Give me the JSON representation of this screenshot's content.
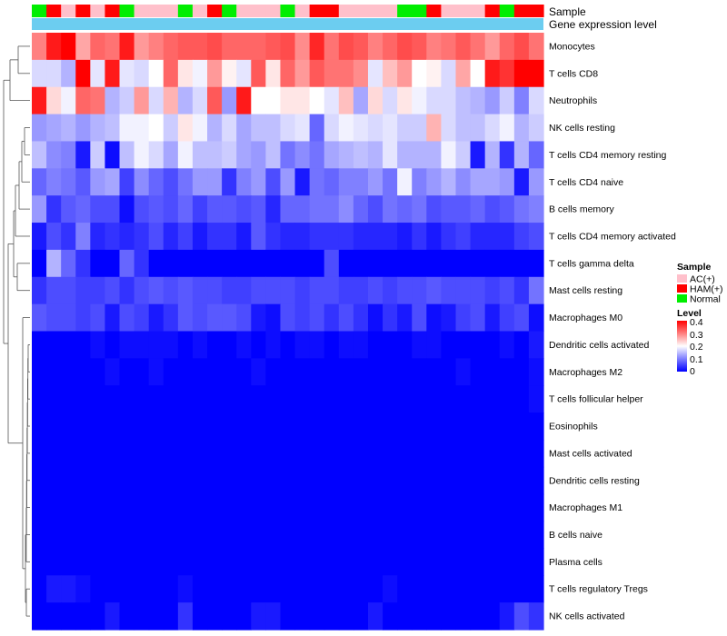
{
  "chart_data": {
    "type": "heatmap",
    "title": "",
    "annotation_labels": [
      "Sample",
      "Gene expression level"
    ],
    "samples": [
      "Normal",
      "HAM(+)",
      "AC(+)",
      "HAM(+)",
      "AC(+)",
      "HAM(+)",
      "Normal",
      "AC(+)",
      "AC(+)",
      "AC(+)",
      "Normal",
      "AC(+)",
      "HAM(+)",
      "Normal",
      "AC(+)",
      "AC(+)",
      "AC(+)",
      "Normal",
      "AC(+)",
      "HAM(+)",
      "HAM(+)",
      "AC(+)",
      "AC(+)",
      "AC(+)",
      "AC(+)",
      "Normal",
      "Normal",
      "HAM(+)",
      "AC(+)",
      "AC(+)",
      "AC(+)",
      "HAM(+)",
      "Normal",
      "HAM(+)",
      "HAM(+)"
    ],
    "sample_colors": {
      "AC(+)": "#ffc0cb",
      "HAM(+)": "#ff0000",
      "Normal": "#00ee00"
    },
    "gene_expression_color": "#6ccdf0",
    "sample_legend": {
      "title": "Sample",
      "entries": [
        "AC(+)",
        "HAM(+)",
        "Normal"
      ]
    },
    "color_scale": {
      "title": "Level",
      "low": "#0000ff",
      "mid": "#ffffff",
      "high": "#ff0000",
      "min": 0,
      "mid_value": 0.2,
      "max": 0.4,
      "ticks": [
        "0.4",
        "0.3",
        "0.2",
        "0.1",
        "0"
      ]
    },
    "rows": [
      {
        "name": "Monocytes",
        "values": [
          0.3,
          0.38,
          0.4,
          0.27,
          0.32,
          0.31,
          0.38,
          0.28,
          0.3,
          0.32,
          0.33,
          0.33,
          0.34,
          0.32,
          0.32,
          0.32,
          0.33,
          0.34,
          0.29,
          0.37,
          0.31,
          0.34,
          0.33,
          0.3,
          0.32,
          0.34,
          0.33,
          0.3,
          0.31,
          0.33,
          0.31,
          0.28,
          0.32,
          0.34,
          0.31
        ]
      },
      {
        "name": "T cells CD8",
        "values": [
          0.17,
          0.17,
          0.14,
          0.4,
          0.18,
          0.38,
          0.18,
          0.17,
          0.2,
          0.32,
          0.22,
          0.19,
          0.28,
          0.21,
          0.18,
          0.33,
          0.22,
          0.32,
          0.28,
          0.33,
          0.31,
          0.31,
          0.29,
          0.18,
          0.25,
          0.28,
          0.2,
          0.21,
          0.17,
          0.27,
          0.2,
          0.38,
          0.36,
          0.4,
          0.4
        ]
      },
      {
        "name": "Neutrophils",
        "values": [
          0.38,
          0.23,
          0.19,
          0.32,
          0.31,
          0.14,
          0.16,
          0.28,
          0.17,
          0.26,
          0.14,
          0.17,
          0.33,
          0.12,
          0.38,
          0.2,
          0.2,
          0.22,
          0.22,
          0.2,
          0.18,
          0.25,
          0.13,
          0.23,
          0.17,
          0.22,
          0.19,
          0.17,
          0.17,
          0.15,
          0.14,
          0.12,
          0.16,
          0.1,
          0.17
        ]
      },
      {
        "name": "NK cells resting",
        "values": [
          0.12,
          0.13,
          0.14,
          0.12,
          0.14,
          0.15,
          0.19,
          0.19,
          0.2,
          0.16,
          0.22,
          0.19,
          0.14,
          0.17,
          0.13,
          0.15,
          0.15,
          0.17,
          0.18,
          0.08,
          0.17,
          0.19,
          0.18,
          0.17,
          0.18,
          0.16,
          0.16,
          0.26,
          0.17,
          0.15,
          0.15,
          0.17,
          0.19,
          0.14,
          0.16
        ]
      },
      {
        "name": "T cells CD4 memory resting",
        "values": [
          0.15,
          0.11,
          0.1,
          0.02,
          0.16,
          0.01,
          0.15,
          0.19,
          0.17,
          0.13,
          0.19,
          0.15,
          0.15,
          0.16,
          0.13,
          0.12,
          0.15,
          0.09,
          0.11,
          0.09,
          0.13,
          0.14,
          0.15,
          0.14,
          0.18,
          0.14,
          0.14,
          0.14,
          0.19,
          0.16,
          0.02,
          0.14,
          0.04,
          0.14,
          0.08
        ]
      },
      {
        "name": "T cells CD4 naive",
        "values": [
          0.08,
          0.1,
          0.09,
          0.07,
          0.12,
          0.13,
          0.05,
          0.11,
          0.08,
          0.06,
          0.09,
          0.12,
          0.12,
          0.04,
          0.1,
          0.12,
          0.06,
          0.12,
          0.02,
          0.09,
          0.08,
          0.1,
          0.1,
          0.12,
          0.09,
          0.19,
          0.1,
          0.12,
          0.14,
          0.11,
          0.13,
          0.13,
          0.12,
          0.02,
          0.12
        ]
      },
      {
        "name": "B cells memory",
        "values": [
          0.12,
          0.04,
          0.07,
          0.08,
          0.06,
          0.06,
          0.01,
          0.06,
          0.07,
          0.06,
          0.08,
          0.05,
          0.07,
          0.07,
          0.06,
          0.07,
          0.03,
          0.08,
          0.08,
          0.09,
          0.09,
          0.11,
          0.08,
          0.06,
          0.09,
          0.08,
          0.09,
          0.06,
          0.07,
          0.07,
          0.08,
          0.06,
          0.07,
          0.09,
          0.1
        ]
      },
      {
        "name": "T cells CD4 memory activated",
        "values": [
          0.02,
          0.06,
          0.04,
          0.1,
          0.03,
          0.04,
          0.03,
          0.04,
          0.06,
          0.03,
          0.05,
          0.02,
          0.04,
          0.04,
          0.02,
          0.07,
          0.04,
          0.03,
          0.03,
          0.04,
          0.04,
          0.04,
          0.03,
          0.03,
          0.03,
          0.02,
          0.04,
          0.02,
          0.04,
          0.05,
          0.03,
          0.03,
          0.03,
          0.05,
          0.06
        ]
      },
      {
        "name": "T cells gamma delta",
        "values": [
          0.0,
          0.14,
          0.08,
          0.04,
          0.0,
          0.0,
          0.08,
          0.04,
          0.0,
          0.0,
          0.0,
          0.0,
          0.0,
          0.0,
          0.0,
          0.0,
          0.0,
          0.0,
          0.0,
          0.0,
          0.06,
          0.0,
          0.0,
          0.0,
          0.0,
          0.0,
          0.0,
          0.0,
          0.0,
          0.0,
          0.0,
          0.0,
          0.0,
          0.0,
          0.0
        ]
      },
      {
        "name": "Mast cells resting",
        "values": [
          0.04,
          0.06,
          0.06,
          0.05,
          0.05,
          0.06,
          0.04,
          0.06,
          0.07,
          0.06,
          0.07,
          0.06,
          0.06,
          0.05,
          0.05,
          0.06,
          0.06,
          0.06,
          0.05,
          0.06,
          0.06,
          0.05,
          0.05,
          0.06,
          0.05,
          0.06,
          0.06,
          0.07,
          0.06,
          0.06,
          0.06,
          0.05,
          0.06,
          0.04,
          0.09
        ]
      },
      {
        "name": "Macrophages M0",
        "values": [
          0.07,
          0.06,
          0.06,
          0.05,
          0.06,
          0.02,
          0.06,
          0.05,
          0.02,
          0.04,
          0.07,
          0.06,
          0.07,
          0.07,
          0.06,
          0.02,
          0.01,
          0.06,
          0.05,
          0.06,
          0.04,
          0.06,
          0.04,
          0.01,
          0.04,
          0.02,
          0.06,
          0.01,
          0.02,
          0.05,
          0.06,
          0.02,
          0.05,
          0.06,
          0.01
        ]
      },
      {
        "name": "Dendritic cells activated",
        "values": [
          0.0,
          0.0,
          0.0,
          0.0,
          0.01,
          0.0,
          0.01,
          0.01,
          0.01,
          0.01,
          0.0,
          0.01,
          0.0,
          0.0,
          0.01,
          0.0,
          0.01,
          0.0,
          0.01,
          0.01,
          0.0,
          0.01,
          0.01,
          0.0,
          0.0,
          0.0,
          0.01,
          0.01,
          0.0,
          0.0,
          0.0,
          0.0,
          0.01,
          0.0,
          0.02
        ]
      },
      {
        "name": "Macrophages M2",
        "values": [
          0.0,
          0.0,
          0.0,
          0.0,
          0.0,
          0.01,
          0.0,
          0.0,
          0.01,
          0.0,
          0.0,
          0.0,
          0.0,
          0.0,
          0.0,
          0.01,
          0.0,
          0.0,
          0.0,
          0.0,
          0.0,
          0.0,
          0.0,
          0.0,
          0.0,
          0.0,
          0.0,
          0.0,
          0.0,
          0.01,
          0.0,
          0.0,
          0.0,
          0.0,
          0.01
        ]
      },
      {
        "name": "T cells follicular helper",
        "values": [
          0.0,
          0.0,
          0.0,
          0.0,
          0.0,
          0.0,
          0.0,
          0.0,
          0.0,
          0.0,
          0.0,
          0.0,
          0.0,
          0.0,
          0.0,
          0.0,
          0.0,
          0.0,
          0.0,
          0.0,
          0.0,
          0.0,
          0.0,
          0.0,
          0.0,
          0.0,
          0.0,
          0.0,
          0.0,
          0.0,
          0.0,
          0.0,
          0.0,
          0.0,
          0.01
        ]
      },
      {
        "name": "Eosinophils",
        "values": [
          0.0,
          0.0,
          0.0,
          0.0,
          0.0,
          0.0,
          0.0,
          0.0,
          0.0,
          0.0,
          0.0,
          0.0,
          0.0,
          0.0,
          0.0,
          0.0,
          0.0,
          0.0,
          0.0,
          0.0,
          0.0,
          0.0,
          0.0,
          0.0,
          0.0,
          0.0,
          0.0,
          0.0,
          0.0,
          0.0,
          0.0,
          0.0,
          0.0,
          0.0,
          0.0
        ]
      },
      {
        "name": "Mast cells activated",
        "values": [
          0.0,
          0.0,
          0.0,
          0.0,
          0.0,
          0.0,
          0.0,
          0.0,
          0.0,
          0.0,
          0.0,
          0.0,
          0.0,
          0.0,
          0.0,
          0.0,
          0.0,
          0.0,
          0.0,
          0.0,
          0.0,
          0.0,
          0.0,
          0.0,
          0.0,
          0.0,
          0.0,
          0.0,
          0.0,
          0.0,
          0.0,
          0.0,
          0.0,
          0.0,
          0.0
        ]
      },
      {
        "name": "Dendritic cells resting",
        "values": [
          0.0,
          0.0,
          0.0,
          0.0,
          0.0,
          0.0,
          0.0,
          0.0,
          0.0,
          0.0,
          0.0,
          0.0,
          0.0,
          0.0,
          0.0,
          0.0,
          0.0,
          0.0,
          0.0,
          0.0,
          0.0,
          0.0,
          0.0,
          0.0,
          0.0,
          0.0,
          0.0,
          0.0,
          0.0,
          0.0,
          0.0,
          0.0,
          0.0,
          0.0,
          0.0
        ]
      },
      {
        "name": "Macrophages M1",
        "values": [
          0.0,
          0.0,
          0.0,
          0.0,
          0.0,
          0.0,
          0.0,
          0.0,
          0.0,
          0.0,
          0.0,
          0.0,
          0.0,
          0.0,
          0.0,
          0.0,
          0.0,
          0.0,
          0.0,
          0.0,
          0.0,
          0.0,
          0.0,
          0.0,
          0.0,
          0.0,
          0.0,
          0.0,
          0.0,
          0.0,
          0.0,
          0.0,
          0.0,
          0.0,
          0.0
        ]
      },
      {
        "name": "B cells naive",
        "values": [
          0.0,
          0.0,
          0.0,
          0.0,
          0.0,
          0.0,
          0.0,
          0.0,
          0.0,
          0.0,
          0.0,
          0.0,
          0.0,
          0.0,
          0.0,
          0.0,
          0.0,
          0.0,
          0.0,
          0.0,
          0.0,
          0.0,
          0.0,
          0.0,
          0.0,
          0.0,
          0.0,
          0.0,
          0.0,
          0.0,
          0.0,
          0.0,
          0.0,
          0.0,
          0.0
        ]
      },
      {
        "name": "Plasma cells",
        "values": [
          0.0,
          0.0,
          0.0,
          0.0,
          0.0,
          0.0,
          0.0,
          0.0,
          0.0,
          0.0,
          0.0,
          0.0,
          0.0,
          0.0,
          0.0,
          0.0,
          0.0,
          0.0,
          0.0,
          0.0,
          0.0,
          0.0,
          0.0,
          0.0,
          0.0,
          0.0,
          0.0,
          0.0,
          0.0,
          0.0,
          0.0,
          0.0,
          0.0,
          0.0,
          0.0
        ]
      },
      {
        "name": "T cells regulatory  Tregs",
        "values": [
          0.0,
          0.02,
          0.02,
          0.01,
          0.0,
          0.0,
          0.0,
          0.0,
          0.0,
          0.0,
          0.01,
          0.0,
          0.0,
          0.0,
          0.0,
          0.0,
          0.0,
          0.0,
          0.0,
          0.0,
          0.0,
          0.0,
          0.0,
          0.0,
          0.01,
          0.0,
          0.0,
          0.0,
          0.0,
          0.0,
          0.0,
          0.0,
          0.0,
          0.0,
          0.0
        ]
      },
      {
        "name": "NK cells activated",
        "values": [
          0.0,
          0.0,
          0.0,
          0.0,
          0.0,
          0.02,
          0.0,
          0.0,
          0.0,
          0.0,
          0.04,
          0.0,
          0.0,
          0.0,
          0.0,
          0.02,
          0.02,
          0.0,
          0.0,
          0.0,
          0.0,
          0.0,
          0.0,
          0.02,
          0.0,
          0.0,
          0.0,
          0.0,
          0.0,
          0.0,
          0.0,
          0.0,
          0.02,
          0.06,
          0.04
        ]
      }
    ]
  }
}
